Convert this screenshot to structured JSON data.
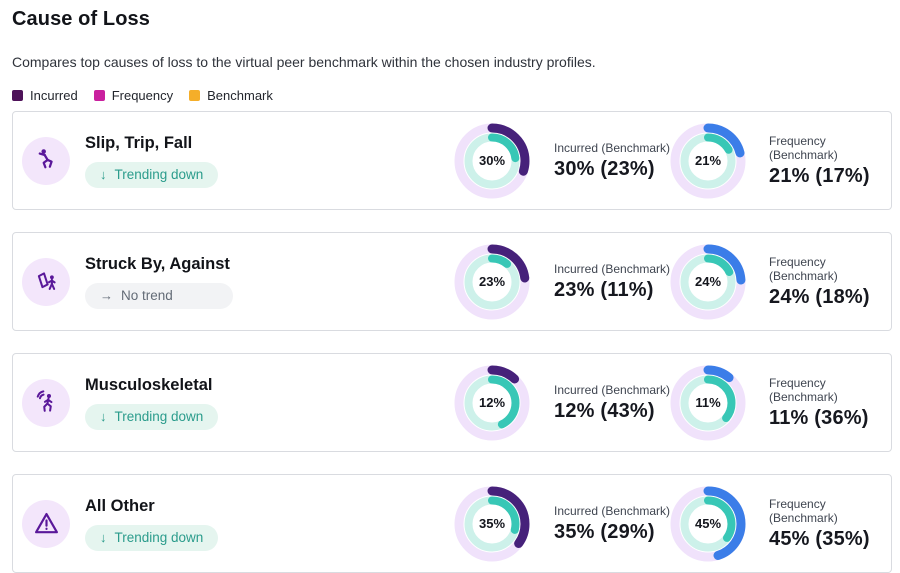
{
  "header": {
    "title": "Cause of Loss",
    "subtitle": "Compares top causes of loss to the virtual peer benchmark within the chosen industry profiles."
  },
  "legend": {
    "items": [
      {
        "label": "Incurred",
        "color": "#4e1259"
      },
      {
        "label": "Frequency",
        "color": "#c9209e"
      },
      {
        "label": "Benchmark",
        "color": "#f5ae29"
      }
    ]
  },
  "colors": {
    "incurred_arc": "#46217a",
    "frequency_arc": "#3b7de8",
    "benchmark_arc": "#38c7b6",
    "outer_track": "#f0e2fb",
    "inner_track": "#cdf1ea",
    "icon_bg": "#f3e6fb",
    "icon_fg": "#5a189a"
  },
  "rows": [
    {
      "title": "Slip, Trip, Fall",
      "icon": "slip-trip-fall-icon",
      "trend": {
        "label": "Trending down",
        "direction": "down",
        "arrow": "↓"
      },
      "incurred": {
        "label": "Incurred (Benchmark)",
        "value_text": "30% (23%)",
        "center": "30%",
        "value": 30,
        "benchmark": 23
      },
      "frequency": {
        "label": "Frequency (Benchmark)",
        "value_text": "21% (17%)",
        "center": "21%",
        "value": 21,
        "benchmark": 17
      }
    },
    {
      "title": "Struck By, Against",
      "icon": "struck-by-icon",
      "trend": {
        "label": "No trend",
        "direction": "none",
        "arrow": "→"
      },
      "incurred": {
        "label": "Incurred (Benchmark)",
        "value_text": "23% (11%)",
        "center": "23%",
        "value": 23,
        "benchmark": 11
      },
      "frequency": {
        "label": "Frequency (Benchmark)",
        "value_text": "24% (18%)",
        "center": "24%",
        "value": 24,
        "benchmark": 18
      }
    },
    {
      "title": "Musculoskeletal",
      "icon": "musculoskeletal-icon",
      "trend": {
        "label": "Trending down",
        "direction": "down",
        "arrow": "↓"
      },
      "incurred": {
        "label": "Incurred (Benchmark)",
        "value_text": "12% (43%)",
        "center": "12%",
        "value": 12,
        "benchmark": 43
      },
      "frequency": {
        "label": "Frequency (Benchmark)",
        "value_text": "11% (36%)",
        "center": "11%",
        "value": 11,
        "benchmark": 36
      }
    },
    {
      "title": "All Other",
      "icon": "warning-triangle-icon",
      "trend": {
        "label": "Trending down",
        "direction": "down",
        "arrow": "↓"
      },
      "incurred": {
        "label": "Incurred (Benchmark)",
        "value_text": "35% (29%)",
        "center": "35%",
        "value": 35,
        "benchmark": 29
      },
      "frequency": {
        "label": "Frequency (Benchmark)",
        "value_text": "45% (35%)",
        "center": "45%",
        "value": 45,
        "benchmark": 35
      }
    }
  ],
  "chart_data": {
    "type": "pie",
    "subtype": "concentric-donut-pairs",
    "title": "Cause of Loss",
    "legend": [
      "Incurred",
      "Frequency",
      "Benchmark"
    ],
    "rows": [
      {
        "category": "Slip, Trip, Fall",
        "trend": "Trending down",
        "incurred_pct": 30,
        "incurred_benchmark_pct": 23,
        "frequency_pct": 21,
        "frequency_benchmark_pct": 17
      },
      {
        "category": "Struck By, Against",
        "trend": "No trend",
        "incurred_pct": 23,
        "incurred_benchmark_pct": 11,
        "frequency_pct": 24,
        "frequency_benchmark_pct": 18
      },
      {
        "category": "Musculoskeletal",
        "trend": "Trending down",
        "incurred_pct": 12,
        "incurred_benchmark_pct": 43,
        "frequency_pct": 11,
        "frequency_benchmark_pct": 36
      },
      {
        "category": "All Other",
        "trend": "Trending down",
        "incurred_pct": 35,
        "incurred_benchmark_pct": 29,
        "frequency_pct": 45,
        "frequency_benchmark_pct": 35
      }
    ]
  }
}
